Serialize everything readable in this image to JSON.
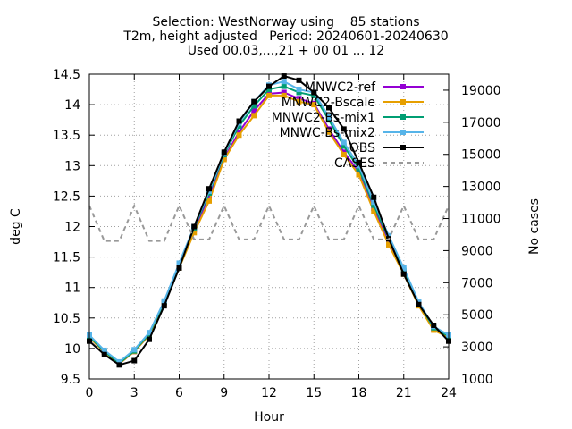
{
  "chart_data": {
    "type": "line",
    "title_lines": [
      "Selection: WestNorway using    85 stations",
      "T2m, height adjusted   Period: 20240601-20240630",
      "Used 00,03,...,21 + 00 01 ... 12"
    ],
    "xlabel": "Hour",
    "ylabel": "deg C",
    "y2label": "No cases",
    "xlim": [
      0,
      24
    ],
    "ylim": [
      9.5,
      14.5
    ],
    "y2lim": [
      1000,
      20000
    ],
    "xticks": [
      0,
      3,
      6,
      9,
      12,
      15,
      18,
      21,
      24
    ],
    "yticks": [
      9.5,
      10,
      10.5,
      11,
      11.5,
      12,
      12.5,
      13,
      13.5,
      14,
      14.5
    ],
    "y2ticks": [
      1000,
      3000,
      5000,
      7000,
      9000,
      11000,
      13000,
      15000,
      17000,
      19000
    ],
    "grid": true,
    "legend_position": "top-right",
    "x": [
      0,
      1,
      2,
      3,
      4,
      5,
      6,
      7,
      8,
      9,
      10,
      11,
      12,
      13,
      14,
      15,
      16,
      17,
      18,
      19,
      20,
      21,
      22,
      23,
      24
    ],
    "series": [
      {
        "name": "MNWC2-ref",
        "color": "#9400d3",
        "marker": "square",
        "values": [
          10.18,
          9.94,
          9.75,
          9.95,
          10.22,
          10.75,
          11.35,
          11.95,
          12.5,
          13.12,
          13.55,
          13.9,
          14.18,
          14.2,
          14.1,
          14.02,
          13.6,
          13.22,
          12.9,
          12.3,
          11.75,
          11.25,
          10.72,
          10.32,
          10.2
        ]
      },
      {
        "name": "MNWC2-Bscale",
        "color": "#e69f00",
        "marker": "square",
        "values": [
          10.18,
          9.94,
          9.75,
          9.95,
          10.22,
          10.72,
          11.32,
          11.9,
          12.42,
          13.1,
          13.5,
          13.82,
          14.15,
          14.15,
          14.05,
          14.0,
          13.55,
          13.18,
          12.85,
          12.25,
          11.7,
          11.22,
          10.7,
          10.3,
          10.18
        ]
      },
      {
        "name": "MNWC2-Bs-mix1",
        "color": "#009e73",
        "marker": "square",
        "values": [
          10.2,
          9.95,
          9.76,
          9.96,
          10.24,
          10.76,
          11.38,
          11.98,
          12.55,
          13.18,
          13.65,
          13.98,
          14.25,
          14.3,
          14.2,
          14.15,
          13.75,
          13.32,
          12.95,
          12.35,
          11.8,
          11.28,
          10.74,
          10.34,
          10.2
        ]
      },
      {
        "name": "MNWC-Bs-mix2",
        "color": "#56b4e9",
        "marker": "square",
        "values": [
          10.22,
          9.97,
          9.78,
          9.98,
          10.26,
          10.78,
          11.4,
          12.0,
          12.58,
          13.2,
          13.7,
          14.05,
          14.32,
          14.38,
          14.25,
          14.2,
          13.8,
          13.38,
          13.0,
          12.4,
          11.85,
          11.32,
          10.76,
          10.36,
          10.22
        ]
      },
      {
        "name": "OBS",
        "color": "#000000",
        "marker": "square",
        "values": [
          10.12,
          9.9,
          9.73,
          9.8,
          10.15,
          10.7,
          11.32,
          12.0,
          12.62,
          13.22,
          13.73,
          14.05,
          14.3,
          14.47,
          14.4,
          14.2,
          13.95,
          13.6,
          13.05,
          12.48,
          11.8,
          11.22,
          10.72,
          10.38,
          10.12
        ]
      },
      {
        "name": "CASES",
        "color": "#999999",
        "marker": "none",
        "dashed": true,
        "axis": "y2",
        "values": [
          11800,
          9600,
          9600,
          11800,
          9600,
          9600,
          11800,
          9700,
          9700,
          11800,
          9700,
          9700,
          11800,
          9700,
          9700,
          11800,
          9700,
          9700,
          11800,
          9700,
          9700,
          11800,
          9700,
          9700,
          11800
        ]
      }
    ]
  }
}
